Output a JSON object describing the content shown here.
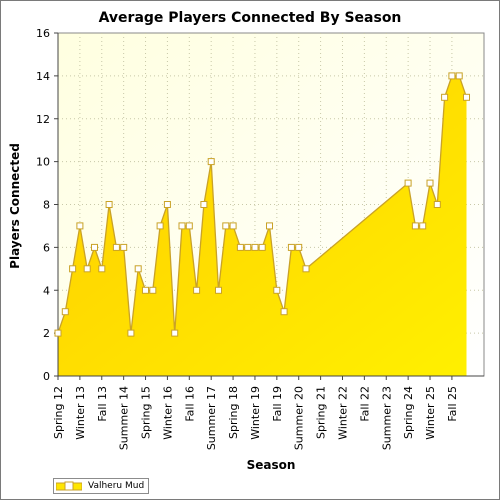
{
  "chart_data": {
    "type": "area",
    "title": "Average Players Connected By Season",
    "xlabel": "Season",
    "ylabel": "Players Connected",
    "ylim": [
      0,
      16
    ],
    "yticks": [
      0,
      2,
      4,
      6,
      8,
      10,
      12,
      14,
      16
    ],
    "xlim": [
      2012,
      2026.6
    ],
    "xtick_labels": [
      {
        "label": "Spring 12",
        "x": 2012.0
      },
      {
        "label": "Winter 13",
        "x": 2012.75
      },
      {
        "label": "Fall 13",
        "x": 2013.5
      },
      {
        "label": "Summer 14",
        "x": 2014.25
      },
      {
        "label": "Spring 15",
        "x": 2015.0
      },
      {
        "label": "Winter 16",
        "x": 2015.75
      },
      {
        "label": "Fall 16",
        "x": 2016.5
      },
      {
        "label": "Summer 17",
        "x": 2017.25
      },
      {
        "label": "Spring 18",
        "x": 2018.0
      },
      {
        "label": "Winter 19",
        "x": 2018.75
      },
      {
        "label": "Fall 19",
        "x": 2019.5
      },
      {
        "label": "Summer 20",
        "x": 2020.25
      },
      {
        "label": "Spring 21",
        "x": 2021.0
      },
      {
        "label": "Winter 22",
        "x": 2021.75
      },
      {
        "label": "Fall 22",
        "x": 2022.5
      },
      {
        "label": "Summer 23",
        "x": 2023.25
      },
      {
        "label": "Spring 24",
        "x": 2024.0
      },
      {
        "label": "Winter 25",
        "x": 2024.75
      },
      {
        "label": "Fall 25",
        "x": 2025.5
      }
    ],
    "grid": true,
    "legend_position": "bottom-left",
    "series": [
      {
        "name": "Valheru Mud",
        "color": "#ffe600",
        "line_color": "#c9a227",
        "points": [
          [
            2012.0,
            2
          ],
          [
            2012.25,
            3
          ],
          [
            2012.5,
            5
          ],
          [
            2012.75,
            7
          ],
          [
            2013.0,
            5
          ],
          [
            2013.25,
            6
          ],
          [
            2013.5,
            5
          ],
          [
            2013.75,
            8
          ],
          [
            2014.0,
            6
          ],
          [
            2014.25,
            6
          ],
          [
            2014.5,
            2
          ],
          [
            2014.75,
            5
          ],
          [
            2015.0,
            4
          ],
          [
            2015.25,
            4
          ],
          [
            2015.5,
            7
          ],
          [
            2015.75,
            8
          ],
          [
            2016.0,
            2
          ],
          [
            2016.25,
            7
          ],
          [
            2016.5,
            7
          ],
          [
            2016.75,
            4
          ],
          [
            2017.0,
            8
          ],
          [
            2017.25,
            10
          ],
          [
            2017.5,
            4
          ],
          [
            2017.75,
            7
          ],
          [
            2018.0,
            7
          ],
          [
            2018.25,
            6
          ],
          [
            2018.5,
            6
          ],
          [
            2018.75,
            6
          ],
          [
            2019.0,
            6
          ],
          [
            2019.25,
            7
          ],
          [
            2019.5,
            4
          ],
          [
            2019.75,
            3
          ],
          [
            2020.0,
            6
          ],
          [
            2020.25,
            6
          ],
          [
            2020.5,
            5
          ],
          [
            2024.0,
            9
          ],
          [
            2024.25,
            7
          ],
          [
            2024.5,
            7
          ],
          [
            2024.75,
            9
          ],
          [
            2025.0,
            8
          ],
          [
            2025.25,
            13
          ],
          [
            2025.5,
            14
          ],
          [
            2025.75,
            14
          ],
          [
            2026.0,
            13
          ]
        ]
      }
    ]
  }
}
